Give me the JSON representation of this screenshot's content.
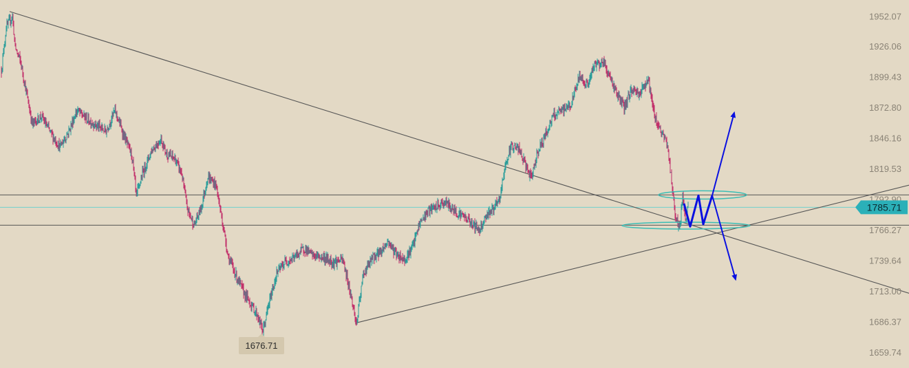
{
  "chart_data": {
    "type": "candlestick",
    "title": "",
    "xlabel": "",
    "ylabel": "",
    "y_ticks": [
      "1952.07",
      "1926.06",
      "1899.43",
      "1872.80",
      "1846.16",
      "1819.53",
      "1792.90",
      "1766.27",
      "1739.64",
      "1713.00",
      "1686.37",
      "1659.74"
    ],
    "ylim": [
      1646,
      1966
    ],
    "current_price": "1785.71",
    "low_label": "1676.71",
    "horizontal_levels": [
      1796.5,
      1770.2
    ],
    "grid": false,
    "legend": "none",
    "colors": {
      "background": "#e3d9c5",
      "up_candle": "#2a9d9a",
      "down_candle": "#c2306a",
      "trendline": "#555555",
      "level_line": "#555555",
      "current_line": "#6fd0cc",
      "price_tag": "#2bb0b8",
      "arrow": "#0a10e0",
      "zone": "#3bbdb5"
    },
    "anchors": [
      [
        0,
        1905
      ],
      [
        7,
        1942
      ],
      [
        16,
        1952
      ],
      [
        20,
        1925
      ],
      [
        28,
        1912
      ],
      [
        38,
        1880
      ],
      [
        45,
        1858
      ],
      [
        58,
        1865
      ],
      [
        72,
        1850
      ],
      [
        85,
        1838
      ],
      [
        98,
        1852
      ],
      [
        110,
        1870
      ],
      [
        125,
        1862
      ],
      [
        140,
        1856
      ],
      [
        152,
        1852
      ],
      [
        165,
        1870
      ],
      [
        178,
        1848
      ],
      [
        190,
        1830
      ],
      [
        196,
        1795
      ],
      [
        205,
        1815
      ],
      [
        218,
        1835
      ],
      [
        232,
        1845
      ],
      [
        240,
        1832
      ],
      [
        252,
        1828
      ],
      [
        262,
        1815
      ],
      [
        270,
        1785
      ],
      [
        280,
        1770
      ],
      [
        290,
        1785
      ],
      [
        300,
        1812
      ],
      [
        312,
        1805
      ],
      [
        322,
        1770
      ],
      [
        330,
        1742
      ],
      [
        342,
        1725
      ],
      [
        352,
        1712
      ],
      [
        362,
        1702
      ],
      [
        372,
        1692
      ],
      [
        380,
        1678
      ],
      [
        390,
        1705
      ],
      [
        400,
        1728
      ],
      [
        412,
        1738
      ],
      [
        425,
        1742
      ],
      [
        440,
        1750
      ],
      [
        452,
        1744
      ],
      [
        468,
        1742
      ],
      [
        482,
        1738
      ],
      [
        496,
        1740
      ],
      [
        506,
        1715
      ],
      [
        516,
        1684
      ],
      [
        526,
        1728
      ],
      [
        540,
        1742
      ],
      [
        552,
        1748
      ],
      [
        562,
        1756
      ],
      [
        574,
        1745
      ],
      [
        586,
        1740
      ],
      [
        598,
        1752
      ],
      [
        608,
        1772
      ],
      [
        620,
        1782
      ],
      [
        632,
        1786
      ],
      [
        645,
        1790
      ],
      [
        660,
        1782
      ],
      [
        672,
        1778
      ],
      [
        684,
        1772
      ],
      [
        694,
        1766
      ],
      [
        706,
        1780
      ],
      [
        716,
        1785
      ],
      [
        724,
        1792
      ],
      [
        732,
        1822
      ],
      [
        742,
        1840
      ],
      [
        752,
        1836
      ],
      [
        762,
        1822
      ],
      [
        770,
        1810
      ],
      [
        778,
        1832
      ],
      [
        790,
        1848
      ],
      [
        802,
        1865
      ],
      [
        815,
        1870
      ],
      [
        828,
        1875
      ],
      [
        840,
        1900
      ],
      [
        852,
        1892
      ],
      [
        862,
        1910
      ],
      [
        875,
        1912
      ],
      [
        885,
        1898
      ],
      [
        895,
        1884
      ],
      [
        905,
        1872
      ],
      [
        915,
        1888
      ],
      [
        928,
        1885
      ],
      [
        940,
        1898
      ],
      [
        948,
        1868
      ],
      [
        958,
        1852
      ],
      [
        968,
        1840
      ],
      [
        974,
        1808
      ],
      [
        980,
        1776
      ],
      [
        986,
        1768
      ],
      [
        990,
        1795
      ],
      [
        994,
        1772
      ],
      [
        998,
        1790
      ]
    ]
  }
}
